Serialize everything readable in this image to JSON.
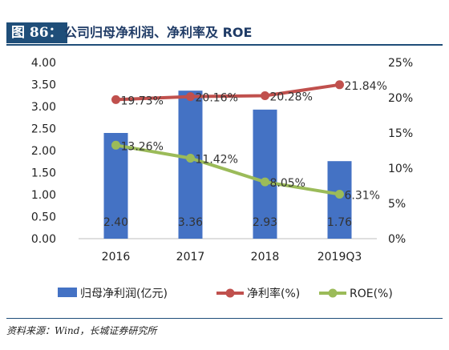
{
  "header": {
    "tag": "图 86：",
    "title": "公司归母净利润、净利率及 ROE"
  },
  "footer": {
    "source": "资料来源：Wind，长城证券研究所"
  },
  "chart_data": {
    "type": "bar",
    "categories": [
      "2016",
      "2017",
      "2018",
      "2019Q3"
    ],
    "series": [
      {
        "name": "归母净利润(亿元)",
        "type": "bar",
        "axis": "left",
        "values": [
          2.4,
          3.36,
          2.93,
          1.76
        ],
        "labels": [
          "2.40",
          "3.36",
          "2.93",
          "1.76"
        ],
        "color": "#4472c4"
      },
      {
        "name": "净利率(%)",
        "type": "line",
        "axis": "right",
        "values": [
          19.73,
          20.16,
          20.28,
          21.84
        ],
        "labels": [
          "19.73%",
          "20.16%",
          "20.28%",
          "21.84%"
        ],
        "color": "#c0504d"
      },
      {
        "name": "ROE(%)",
        "type": "line",
        "axis": "right",
        "values": [
          13.26,
          11.42,
          8.05,
          6.31
        ],
        "labels": [
          "13.26%",
          "11.42%",
          "8.05%",
          "6.31%"
        ],
        "color": "#9bbb59"
      }
    ],
    "y_left": {
      "ticks": [
        "4.00",
        "3.50",
        "3.00",
        "2.50",
        "2.00",
        "1.50",
        "1.00",
        "0.50",
        "0.00"
      ],
      "lim": [
        0,
        4
      ]
    },
    "y_right": {
      "ticks": [
        "25%",
        "20%",
        "15%",
        "10%",
        "5%",
        "0%"
      ],
      "lim": [
        0,
        25
      ]
    },
    "grid": false,
    "legend": "bottom"
  }
}
